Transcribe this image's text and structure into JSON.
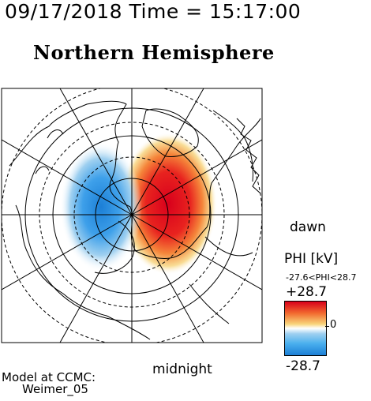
{
  "header": {
    "datetime": "09/17/2018 Time = 15:17:00",
    "hemisphere": "Northern Hemisphere"
  },
  "plot": {
    "dawn_label": "dawn",
    "midnight_label": "midnight",
    "colors": {
      "positive": "#e8231f",
      "negative": "#2f8fe0",
      "neutral": "#ffffff"
    }
  },
  "colorbar": {
    "title": "PHI [kV]",
    "range_text": "-27.6<PHI<28.7",
    "max_label": "+28.7",
    "min_label": "-28.7",
    "zero_label": "0"
  },
  "footer": {
    "model_line1": "Model at CCMC:",
    "model_line2": "Weimer_05"
  }
}
